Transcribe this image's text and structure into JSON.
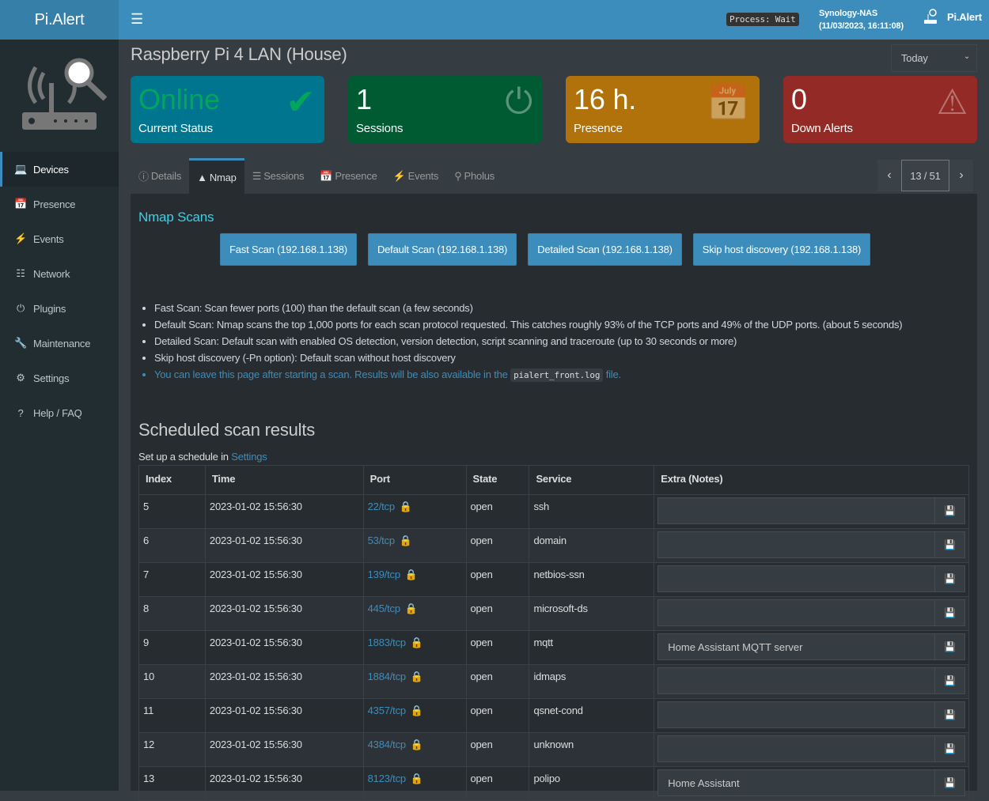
{
  "header": {
    "logo": "Pi.Alert",
    "menu_icon": "hamburger-icon",
    "process": "Process: Wait",
    "host": "Synology-NAS",
    "datetime": "(11/03/2023, 16:11:08)",
    "brand": "Pi.Alert"
  },
  "sidebar": {
    "items": [
      {
        "label": "Devices",
        "icon": "laptop-icon",
        "active": true
      },
      {
        "label": "Presence",
        "icon": "calendar-icon"
      },
      {
        "label": "Events",
        "icon": "bolt-icon"
      },
      {
        "label": "Network",
        "icon": "sitemap-icon"
      },
      {
        "label": "Plugins",
        "icon": "plug-icon"
      },
      {
        "label": "Maintenance",
        "icon": "wrench-icon"
      },
      {
        "label": "Settings",
        "icon": "gear-icon"
      },
      {
        "label": "Help / FAQ",
        "icon": "question-icon"
      }
    ]
  },
  "page": {
    "title": "Raspberry Pi 4 LAN (House)",
    "period": "Today"
  },
  "cards": [
    {
      "value": "Online",
      "label": "Current Status",
      "color": "#00758f",
      "icon": "check-icon"
    },
    {
      "value": "1",
      "label": "Sessions",
      "color": "#005a32",
      "icon": "plug-icon"
    },
    {
      "value": "16 h.",
      "label": "Presence",
      "color": "#b1720c",
      "icon": "calendar-icon"
    },
    {
      "value": "0",
      "label": "Down Alerts",
      "color": "#942a25",
      "icon": "warning-icon"
    }
  ],
  "tabs": [
    {
      "label": "Details",
      "icon": "info-icon"
    },
    {
      "label": "Nmap",
      "icon": "nmap-icon",
      "active": true
    },
    {
      "label": "Sessions",
      "icon": "list-ol-icon"
    },
    {
      "label": "Presence",
      "icon": "calendar-icon"
    },
    {
      "label": "Events",
      "icon": "bolt-icon"
    },
    {
      "label": "Pholus",
      "icon": "search-icon"
    }
  ],
  "pager": {
    "label": "13 / 51"
  },
  "nmap": {
    "title": "Nmap Scans",
    "buttons": [
      "Fast Scan (192.168.1.138)",
      "Default Scan (192.168.1.138)",
      "Detailed Scan (192.168.1.138)",
      "Skip host discovery (192.168.1.138)"
    ],
    "notes": [
      "Fast Scan: Scan fewer ports (100) than the default scan (a few seconds)",
      "Default Scan: Nmap scans the top 1,000 ports for each scan protocol requested. This catches roughly 93% of the TCP ports and 49% of the UDP ports. (about 5 seconds)",
      "Detailed Scan: Default scan with enabled OS detection, version detection, script scanning and traceroute (up to 30 seconds or more)",
      "Skip host discovery (-Pn option): Default scan without host discovery"
    ],
    "info_pre": "You can leave this page after starting a scan. Results will be also available in the",
    "info_code": "pialert_front.log",
    "info_post": "file."
  },
  "scheduled": {
    "title": "Scheduled scan results",
    "setup_pre": "Set up a schedule in",
    "setup_link": "Settings",
    "columns": [
      "Index",
      "Time",
      "Port",
      "State",
      "Service",
      "Extra (Notes)"
    ],
    "rows": [
      {
        "index": "5",
        "time": "2023-01-02 15:56:30",
        "port": "22/tcp",
        "state": "open",
        "service": "ssh",
        "notes": ""
      },
      {
        "index": "6",
        "time": "2023-01-02 15:56:30",
        "port": "53/tcp",
        "state": "open",
        "service": "domain",
        "notes": ""
      },
      {
        "index": "7",
        "time": "2023-01-02 15:56:30",
        "port": "139/tcp",
        "state": "open",
        "service": "netbios-ssn",
        "notes": ""
      },
      {
        "index": "8",
        "time": "2023-01-02 15:56:30",
        "port": "445/tcp",
        "state": "open",
        "service": "microsoft-ds",
        "notes": ""
      },
      {
        "index": "9",
        "time": "2023-01-02 15:56:30",
        "port": "1883/tcp",
        "state": "open",
        "service": "mqtt",
        "notes": "Home Assistant MQTT server"
      },
      {
        "index": "10",
        "time": "2023-01-02 15:56:30",
        "port": "1884/tcp",
        "state": "open",
        "service": "idmaps",
        "notes": ""
      },
      {
        "index": "11",
        "time": "2023-01-02 15:56:30",
        "port": "4357/tcp",
        "state": "open",
        "service": "qsnet-cond",
        "notes": ""
      },
      {
        "index": "12",
        "time": "2023-01-02 15:56:30",
        "port": "4384/tcp",
        "state": "open",
        "service": "unknown",
        "notes": ""
      },
      {
        "index": "13",
        "time": "2023-01-02 15:56:30",
        "port": "8123/tcp",
        "state": "open",
        "service": "polipo",
        "notes": "Home Assistant"
      }
    ]
  }
}
